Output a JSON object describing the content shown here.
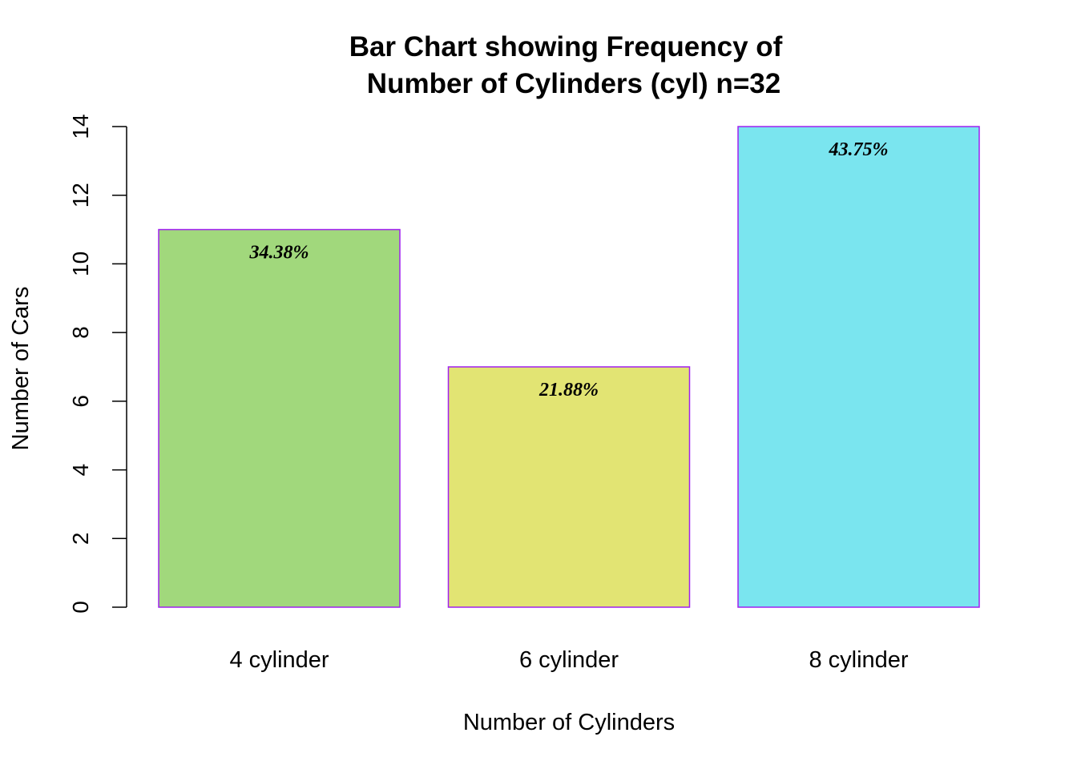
{
  "chart_data": {
    "type": "bar",
    "title_lines": [
      "Bar Chart showing Frequency of",
      "Number of Cylinders (cyl) n=32"
    ],
    "xlabel": "Number of Cylinders",
    "ylabel": "Number of Cars",
    "categories": [
      "4 cylinder",
      "6 cylinder",
      "8 cylinder"
    ],
    "values": [
      11,
      7,
      14
    ],
    "data_labels": [
      "34.38%",
      "21.88%",
      "43.75%"
    ],
    "colors": [
      "#a1d87c",
      "#e2e473",
      "#7ae5ef"
    ],
    "border_color": "#a020f0",
    "ylim": [
      0,
      14
    ],
    "yticks": [
      0,
      2,
      4,
      6,
      8,
      10,
      12,
      14
    ],
    "grid": false,
    "legend": "none"
  }
}
